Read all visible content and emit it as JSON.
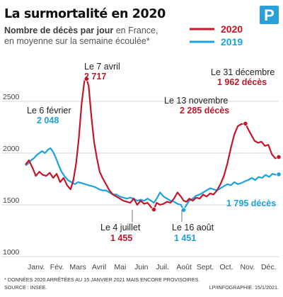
{
  "chart_data": {
    "type": "line",
    "title": "La surmortalité en 2020",
    "subtitle_bold": "Nombre de décès par jour",
    "subtitle_rest_1": " en France,",
    "subtitle_line_2": "en moyenne sur la semaine écoulée*",
    "ylim": [
      1000,
      3000
    ],
    "yticks": [
      1000,
      1500,
      2000,
      2500
    ],
    "ytick_labels": [
      "1000",
      "1500",
      "2000",
      "2500"
    ],
    "months": [
      "Janv.",
      "Fév.",
      "Mars",
      "Avril",
      "Mai",
      "Juin",
      "Juil.",
      "Août",
      "Sept.",
      "Oct.",
      "Nov.",
      "Déc."
    ],
    "x_range_days": [
      1,
      366
    ],
    "grid": "horizontal",
    "legend_position": "top-right",
    "series": [
      {
        "name": "2020",
        "color": "#c2172a",
        "points": [
          [
            1,
            1890
          ],
          [
            6,
            1930
          ],
          [
            11,
            1860
          ],
          [
            16,
            1780
          ],
          [
            21,
            1820
          ],
          [
            26,
            1790
          ],
          [
            31,
            1780
          ],
          [
            36,
            1810
          ],
          [
            41,
            1760
          ],
          [
            46,
            1800
          ],
          [
            51,
            1720
          ],
          [
            56,
            1760
          ],
          [
            61,
            1690
          ],
          [
            66,
            1650
          ],
          [
            70,
            1740
          ],
          [
            74,
            1900
          ],
          [
            78,
            2150
          ],
          [
            82,
            2480
          ],
          [
            86,
            2700
          ],
          [
            89,
            2717
          ],
          [
            92,
            2650
          ],
          [
            96,
            2350
          ],
          [
            100,
            2100
          ],
          [
            104,
            1950
          ],
          [
            108,
            1820
          ],
          [
            112,
            1760
          ],
          [
            117,
            1700
          ],
          [
            122,
            1640
          ],
          [
            127,
            1600
          ],
          [
            132,
            1580
          ],
          [
            137,
            1560
          ],
          [
            142,
            1540
          ],
          [
            147,
            1530
          ],
          [
            152,
            1520
          ],
          [
            157,
            1560
          ],
          [
            162,
            1500
          ],
          [
            167,
            1540
          ],
          [
            172,
            1510
          ],
          [
            177,
            1520
          ],
          [
            183,
            1470
          ],
          [
            186,
            1455
          ],
          [
            190,
            1520
          ],
          [
            195,
            1500
          ],
          [
            200,
            1510
          ],
          [
            205,
            1530
          ],
          [
            210,
            1520
          ],
          [
            215,
            1560
          ],
          [
            220,
            1620
          ],
          [
            225,
            1580
          ],
          [
            229,
            1540
          ],
          [
            233,
            1530
          ],
          [
            237,
            1560
          ],
          [
            242,
            1540
          ],
          [
            247,
            1570
          ],
          [
            252,
            1560
          ],
          [
            257,
            1600
          ],
          [
            262,
            1580
          ],
          [
            267,
            1610
          ],
          [
            272,
            1600
          ],
          [
            277,
            1640
          ],
          [
            282,
            1700
          ],
          [
            287,
            1780
          ],
          [
            292,
            1900
          ],
          [
            297,
            2050
          ],
          [
            302,
            2180
          ],
          [
            307,
            2260
          ],
          [
            312,
            2280
          ],
          [
            318,
            2285
          ],
          [
            322,
            2230
          ],
          [
            326,
            2180
          ],
          [
            331,
            2120
          ],
          [
            336,
            2100
          ],
          [
            341,
            2110
          ],
          [
            346,
            2070
          ],
          [
            351,
            2080
          ],
          [
            356,
            1990
          ],
          [
            361,
            1950
          ],
          [
            366,
            1962
          ]
        ]
      },
      {
        "name": "2019",
        "color": "#1aa3dc",
        "points": [
          [
            1,
            1880
          ],
          [
            5,
            1900
          ],
          [
            9,
            1930
          ],
          [
            13,
            1950
          ],
          [
            17,
            1980
          ],
          [
            21,
            2000
          ],
          [
            25,
            2020
          ],
          [
            29,
            2000
          ],
          [
            33,
            2030
          ],
          [
            37,
            2048
          ],
          [
            41,
            2010
          ],
          [
            45,
            1950
          ],
          [
            49,
            1880
          ],
          [
            53,
            1820
          ],
          [
            57,
            1780
          ],
          [
            62,
            1740
          ],
          [
            67,
            1720
          ],
          [
            72,
            1700
          ],
          [
            77,
            1720
          ],
          [
            82,
            1710
          ],
          [
            87,
            1700
          ],
          [
            92,
            1690
          ],
          [
            97,
            1680
          ],
          [
            102,
            1670
          ],
          [
            107,
            1650
          ],
          [
            112,
            1640
          ],
          [
            117,
            1640
          ],
          [
            122,
            1620
          ],
          [
            127,
            1600
          ],
          [
            132,
            1600
          ],
          [
            137,
            1580
          ],
          [
            142,
            1570
          ],
          [
            147,
            1560
          ],
          [
            152,
            1570
          ],
          [
            157,
            1560
          ],
          [
            162,
            1540
          ],
          [
            167,
            1550
          ],
          [
            172,
            1540
          ],
          [
            177,
            1560
          ],
          [
            182,
            1540
          ],
          [
            186,
            1520
          ],
          [
            190,
            1560
          ],
          [
            195,
            1620
          ],
          [
            200,
            1580
          ],
          [
            205,
            1560
          ],
          [
            210,
            1540
          ],
          [
            215,
            1530
          ],
          [
            220,
            1510
          ],
          [
            225,
            1500
          ],
          [
            229,
            1451
          ],
          [
            233,
            1500
          ],
          [
            237,
            1540
          ],
          [
            242,
            1560
          ],
          [
            247,
            1590
          ],
          [
            252,
            1600
          ],
          [
            257,
            1620
          ],
          [
            262,
            1640
          ],
          [
            267,
            1660
          ],
          [
            272,
            1650
          ],
          [
            277,
            1640
          ],
          [
            282,
            1660
          ],
          [
            287,
            1680
          ],
          [
            292,
            1700
          ],
          [
            297,
            1690
          ],
          [
            302,
            1720
          ],
          [
            307,
            1700
          ],
          [
            312,
            1710
          ],
          [
            318,
            1730
          ],
          [
            322,
            1740
          ],
          [
            327,
            1760
          ],
          [
            332,
            1740
          ],
          [
            337,
            1770
          ],
          [
            342,
            1760
          ],
          [
            347,
            1790
          ],
          [
            352,
            1770
          ],
          [
            357,
            1800
          ],
          [
            362,
            1790
          ],
          [
            366,
            1795
          ]
        ]
      }
    ],
    "markers": [
      {
        "series": "2020",
        "x": 89,
        "y": 2717
      },
      {
        "series": "2020",
        "x": 186,
        "y": 1455
      },
      {
        "series": "2020",
        "x": 318,
        "y": 2285
      },
      {
        "series": "2020",
        "x": 366,
        "y": 1962
      },
      {
        "series": "2019",
        "x": 229,
        "y": 1451
      },
      {
        "series": "2019",
        "x": 366,
        "y": 1795
      }
    ],
    "annotations": {
      "avril": {
        "label": "Le 7 avril",
        "value": "2 717"
      },
      "fevrier": {
        "label": "Le 6 février",
        "value": "2 048"
      },
      "juillet": {
        "label": "Le 4 juillet",
        "value": "1 455"
      },
      "aout": {
        "label": "Le 16 août",
        "value": "1 451"
      },
      "novembre": {
        "label": "Le 13 novembre",
        "value": "2 285 décès"
      },
      "decembre": {
        "label": "Le 31 décembre",
        "value": "1 962 décès"
      },
      "decembre_2019": {
        "value": "1 795 décès"
      }
    },
    "footnote_1": "* DONNÉES 2020 ARRÊTÉES AU 15 JANVIER 2021 MAIS ENCORE PROVISOIRES.",
    "footnote_2": "SOURCE : INSEE.",
    "credit": "LP/INFOGRAPHIE. 15/1/2021.",
    "logo_letter": "P",
    "colors": {
      "red": "#c2172a",
      "blue": "#1aa3dc",
      "grid": "#d6d6d6",
      "logo": "#2b9fd8"
    }
  }
}
